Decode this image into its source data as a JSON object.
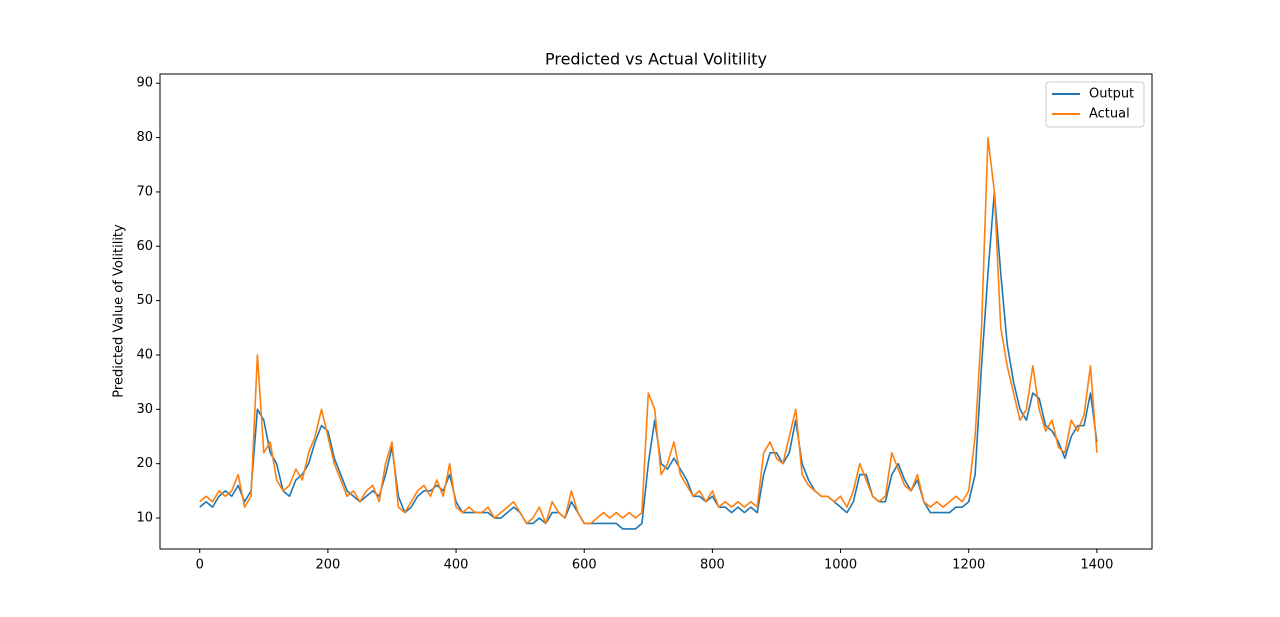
{
  "chart_data": {
    "type": "line",
    "title": "Predicted vs Actual Volitility",
    "ylabel": "Predicted Value of Volitility",
    "x": [
      0,
      10,
      20,
      30,
      40,
      50,
      60,
      70,
      80,
      90,
      100,
      110,
      120,
      130,
      140,
      150,
      160,
      170,
      180,
      190,
      200,
      210,
      220,
      230,
      240,
      250,
      260,
      270,
      280,
      290,
      300,
      310,
      320,
      330,
      340,
      350,
      360,
      370,
      380,
      390,
      400,
      410,
      420,
      430,
      440,
      450,
      460,
      470,
      480,
      490,
      500,
      510,
      520,
      530,
      540,
      550,
      560,
      570,
      580,
      590,
      600,
      610,
      620,
      630,
      640,
      650,
      660,
      670,
      680,
      690,
      700,
      710,
      720,
      730,
      740,
      750,
      760,
      770,
      780,
      790,
      800,
      810,
      820,
      830,
      840,
      850,
      860,
      870,
      880,
      890,
      900,
      910,
      920,
      930,
      940,
      950,
      960,
      970,
      980,
      990,
      1000,
      1010,
      1020,
      1030,
      1040,
      1050,
      1060,
      1070,
      1080,
      1090,
      1100,
      1110,
      1120,
      1130,
      1140,
      1150,
      1160,
      1170,
      1180,
      1190,
      1200,
      1210,
      1220,
      1230,
      1240,
      1250,
      1260,
      1270,
      1280,
      1290,
      1300,
      1310,
      1320,
      1330,
      1340,
      1350,
      1360,
      1370,
      1380,
      1390,
      1400
    ],
    "series": [
      {
        "name": "Output",
        "color": "#1f77b4",
        "values": [
          12,
          13,
          12,
          14,
          15,
          14,
          16,
          13,
          15,
          30,
          28,
          22,
          20,
          15,
          14,
          17,
          18,
          20,
          24,
          27,
          26,
          21,
          18,
          15,
          14,
          13,
          14,
          15,
          14,
          18,
          23,
          14,
          11,
          12,
          14,
          15,
          15,
          16,
          15,
          18,
          13,
          11,
          11,
          11,
          11,
          11,
          10,
          10,
          11,
          12,
          11,
          9,
          9,
          10,
          9,
          11,
          11,
          10,
          13,
          11,
          9,
          9,
          9,
          9,
          9,
          9,
          8,
          8,
          8,
          9,
          20,
          28,
          20,
          19,
          21,
          19,
          17,
          14,
          14,
          13,
          14,
          12,
          12,
          11,
          12,
          11,
          12,
          11,
          18,
          22,
          22,
          20,
          22,
          28,
          20,
          17,
          15,
          14,
          14,
          13,
          12,
          11,
          13,
          18,
          18,
          14,
          13,
          13,
          18,
          20,
          17,
          15,
          17,
          13,
          11,
          11,
          11,
          11,
          12,
          12,
          13,
          18,
          38,
          55,
          70,
          55,
          42,
          35,
          30,
          28,
          33,
          32,
          27,
          26,
          24,
          21,
          25,
          27,
          27,
          33,
          24
        ]
      },
      {
        "name": "Actual",
        "color": "#ff7f0e",
        "values": [
          13,
          14,
          13,
          15,
          14,
          15,
          18,
          12,
          14,
          40,
          22,
          24,
          17,
          15,
          16,
          19,
          17,
          22,
          25,
          30,
          25,
          20,
          17,
          14,
          15,
          13,
          15,
          16,
          13,
          20,
          24,
          12,
          11,
          13,
          15,
          16,
          14,
          17,
          14,
          20,
          12,
          11,
          12,
          11,
          11,
          12,
          10,
          11,
          12,
          13,
          11,
          9,
          10,
          12,
          9,
          13,
          11,
          10,
          15,
          11,
          9,
          9,
          10,
          11,
          10,
          11,
          10,
          11,
          10,
          11,
          33,
          30,
          18,
          20,
          24,
          18,
          16,
          14,
          15,
          13,
          15,
          12,
          13,
          12,
          13,
          12,
          13,
          12,
          22,
          24,
          21,
          20,
          25,
          30,
          18,
          16,
          15,
          14,
          14,
          13,
          14,
          12,
          15,
          20,
          17,
          14,
          13,
          14,
          22,
          19,
          16,
          15,
          18,
          13,
          12,
          13,
          12,
          13,
          14,
          13,
          15,
          25,
          45,
          80,
          70,
          45,
          38,
          33,
          28,
          30,
          38,
          30,
          26,
          28,
          23,
          22,
          28,
          26,
          29,
          38,
          22
        ]
      }
    ],
    "xlim": [
      -62,
      1486
    ],
    "ylim": [
      4.3,
      91.7
    ],
    "xticks": [
      0,
      200,
      400,
      600,
      800,
      1000,
      1200,
      1400
    ],
    "yticks": [
      10,
      20,
      30,
      40,
      50,
      60,
      70,
      80,
      90
    ],
    "legend": "upper right"
  }
}
